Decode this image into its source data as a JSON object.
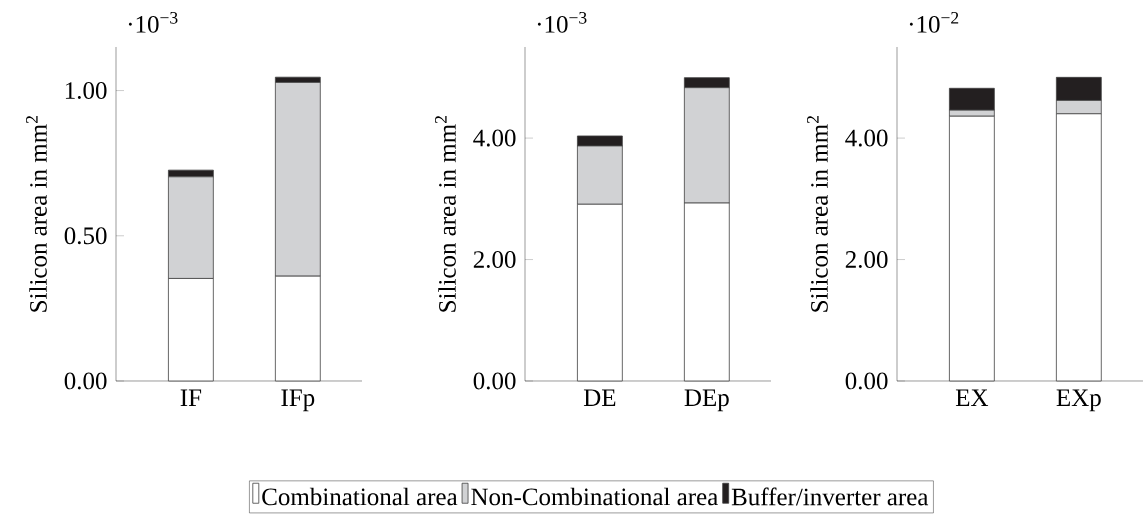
{
  "chart_data": [
    {
      "type": "bar",
      "stacked": true,
      "ylabel": "Silicon area in mm$^{2}$",
      "annotations": [
        "·10$^{−3}$"
      ],
      "categories": [
        "IF",
        "IFp"
      ],
      "ylim": [
        0,
        1.15
      ],
      "yticks": [
        {
          "value": 0,
          "label": "0.00"
        },
        {
          "value": 0.5,
          "label": "0.50"
        },
        {
          "value": 1.0,
          "label": "1.00"
        }
      ],
      "series": [
        {
          "color": "#ffffff",
          "values": [
            0.353,
            0.361
          ]
        },
        {
          "color": "#d1d2d4",
          "values": [
            0.35,
            0.667
          ]
        },
        {
          "color": "#231f20",
          "values": [
            0.023,
            0.018
          ]
        }
      ]
    },
    {
      "type": "bar",
      "stacked": true,
      "ylabel": "Silicon area in mm$^{2}$",
      "annotations": [
        "·10$^{−3}$"
      ],
      "categories": [
        "DE",
        "DEp"
      ],
      "ylim": [
        0,
        5.5
      ],
      "yticks": [
        {
          "value": 0,
          "label": "0.00"
        },
        {
          "value": 2,
          "label": "2.00"
        },
        {
          "value": 4,
          "label": "4.00"
        }
      ],
      "legend": "bottom",
      "series": [
        {
          "name": "Combinational area",
          "color": "#ffffff",
          "values": [
            2.91,
            2.93
          ]
        },
        {
          "name": "Non-Combinational area",
          "color": "#d1d2d4",
          "values": [
            0.96,
            1.9
          ]
        },
        {
          "name": "Buffer/inverter area",
          "color": "#231f20",
          "values": [
            0.165,
            0.165
          ]
        }
      ]
    },
    {
      "type": "bar",
      "stacked": true,
      "ylabel": "Silicon area in mm$^{2}$",
      "annotations": [
        "·10$^{−2}$"
      ],
      "categories": [
        "EX",
        "EXp"
      ],
      "ylim": [
        0,
        5.5
      ],
      "yticks": [
        {
          "value": 0,
          "label": "0.00"
        },
        {
          "value": 2,
          "label": "2.00"
        },
        {
          "value": 4,
          "label": "4.00"
        }
      ],
      "series": [
        {
          "color": "#ffffff",
          "values": [
            4.36,
            4.4
          ]
        },
        {
          "color": "#d1d2d4",
          "values": [
            0.1,
            0.22
          ]
        },
        {
          "color": "#231f20",
          "values": [
            0.36,
            0.38
          ]
        }
      ]
    }
  ]
}
